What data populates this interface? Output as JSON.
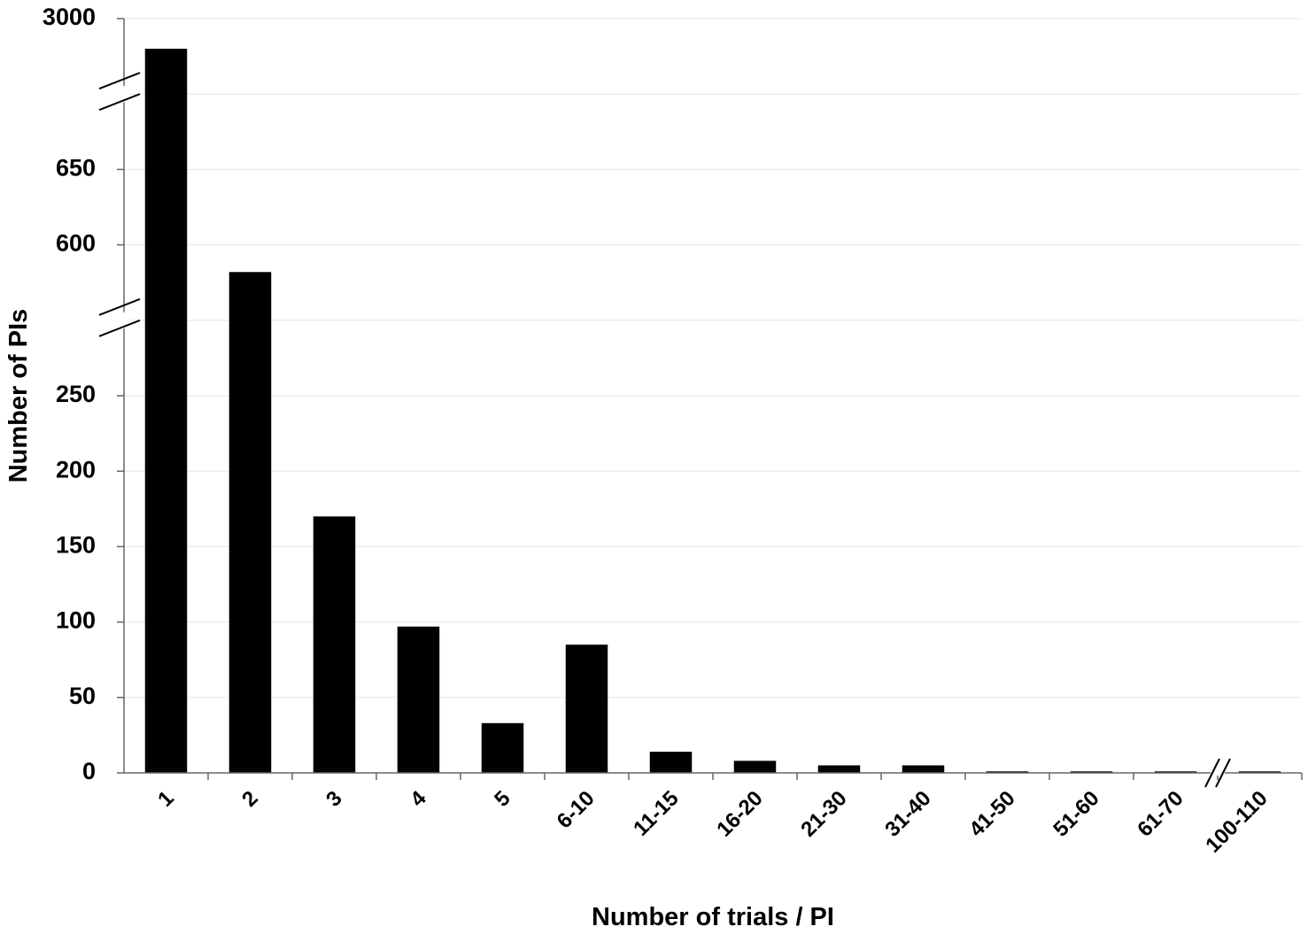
{
  "chart_data": {
    "type": "bar",
    "x_label": "Number of trials / PI",
    "y_label": "Number of PIs",
    "categories": [
      "1",
      "2",
      "3",
      "4",
      "5",
      "6-10",
      "11-15",
      "16-20",
      "21-30",
      "31-40",
      "41-50",
      "51-60",
      "61-70",
      "100-110"
    ],
    "values": [
      2980,
      582,
      170,
      97,
      33,
      85,
      14,
      8,
      5,
      5,
      1,
      1,
      1,
      1
    ],
    "color": "#000000",
    "ylim": [
      0,
      3000
    ],
    "yticks": [
      0,
      50,
      100,
      150,
      200,
      250,
      600,
      650,
      3000
    ],
    "y_breaks": [
      [
        300,
        550
      ],
      [
        700,
        2950
      ]
    ],
    "x_break_after": "61-70",
    "grid": true
  }
}
